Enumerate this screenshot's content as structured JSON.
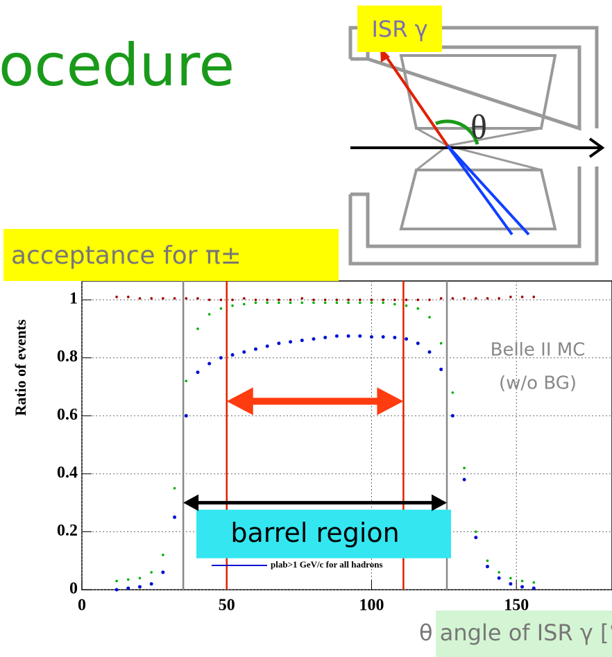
{
  "slide": {
    "title": "ocedure",
    "isr_label": "ISR γ",
    "theta_label": "θ",
    "acceptance_label": "acceptance for π±"
  },
  "chart_data": {
    "type": "scatter",
    "ylabel": "Ratio of events",
    "xlabel": "θ angle of ISR γ [°]",
    "xlim": [
      0,
      183
    ],
    "ylim": [
      0,
      1.065
    ],
    "xticks": [
      0,
      50,
      100,
      150
    ],
    "yticks": [
      0,
      0.2,
      0.4,
      0.6,
      0.8,
      1
    ],
    "grid": true,
    "x": [
      12,
      16,
      20,
      24,
      28,
      32,
      36,
      40,
      44,
      48,
      52,
      56,
      60,
      64,
      68,
      72,
      76,
      80,
      84,
      88,
      92,
      96,
      100,
      104,
      108,
      112,
      116,
      120,
      124,
      128,
      132,
      136,
      140,
      144,
      148,
      152,
      156
    ],
    "series": [
      {
        "color": "#a00000",
        "values": [
          1.01,
          1.01,
          1.005,
          1.005,
          1.005,
          1.005,
          1.005,
          1.005,
          1.0,
          1.0,
          1.0,
          1.005,
          1.0,
          1.0,
          1.0,
          1.0,
          1.005,
          1.0,
          1.0,
          1.0,
          1.0,
          1.0,
          1.0,
          1.0,
          1.0,
          1.0,
          1.0,
          1.0,
          1.005,
          1.005,
          1.005,
          1.005,
          1.005,
          1.005,
          1.01,
          1.01,
          1.01
        ]
      },
      {
        "color": "#00b000",
        "values": [
          0.03,
          0.035,
          0.04,
          0.06,
          0.12,
          0.35,
          0.72,
          0.9,
          0.95,
          0.97,
          0.98,
          0.985,
          0.99,
          0.99,
          0.99,
          0.99,
          0.99,
          0.99,
          0.99,
          0.99,
          0.99,
          0.99,
          0.99,
          0.99,
          0.985,
          0.98,
          0.97,
          0.94,
          0.85,
          0.68,
          0.42,
          0.2,
          0.1,
          0.06,
          0.04,
          0.03,
          0.025
        ]
      },
      {
        "name": "plab>1 GeV/c for all hadrons",
        "color": "#0010d0",
        "values": [
          0.0,
          0.005,
          0.01,
          0.02,
          0.06,
          0.25,
          0.6,
          0.75,
          0.78,
          0.8,
          0.81,
          0.82,
          0.83,
          0.84,
          0.85,
          0.855,
          0.86,
          0.865,
          0.87,
          0.875,
          0.875,
          0.875,
          0.872,
          0.872,
          0.87,
          0.865,
          0.85,
          0.82,
          0.76,
          0.6,
          0.38,
          0.18,
          0.08,
          0.04,
          0.02,
          0.01,
          0.005
        ]
      }
    ],
    "vlines": [
      {
        "x": 35,
        "color": "#888888"
      },
      {
        "x": 126,
        "color": "#888888"
      },
      {
        "x": 50,
        "color": "#e02000"
      },
      {
        "x": 111,
        "color": "#e02000"
      }
    ],
    "arrows": [
      {
        "x": [
          50,
          111
        ],
        "y": 0.65,
        "color": "#ff3b10"
      },
      {
        "x": [
          35,
          126
        ],
        "y": 0.3,
        "color": "#000000",
        "label": "barrel region"
      }
    ],
    "annotations": [
      "Belle II MC",
      "(w/o BG)"
    ]
  }
}
